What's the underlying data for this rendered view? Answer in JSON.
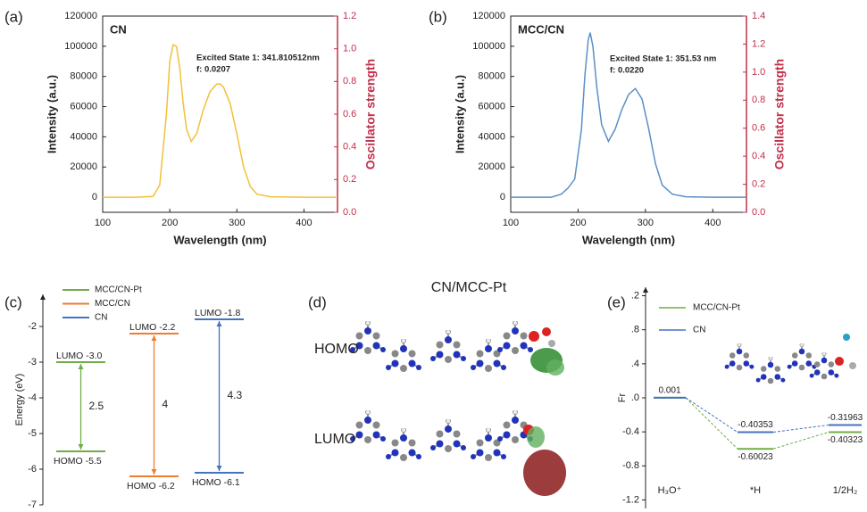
{
  "chart_data": [
    {
      "type": "spectrum",
      "panel_label": "(a)",
      "xlabel": "Wavelength (nm)",
      "ylabel": "Intensity (a.u.)",
      "y2label": "Oscillator strength",
      "annotations": [
        "Excited State 1: 341.810512nm",
        "f: 0.0207"
      ],
      "xlim": [
        100,
        450
      ],
      "xticks": [
        100,
        200,
        300,
        400
      ],
      "ylim": [
        -10000,
        120000
      ],
      "yticks": [
        0,
        20000,
        40000,
        60000,
        80000,
        100000,
        120000
      ],
      "y2lim": [
        0,
        1.2
      ],
      "y2ticks": [
        {
          "value": 0,
          "label": "0.0"
        },
        0.2,
        0.4,
        0.6,
        0.8,
        {
          "value": 1,
          "label": "1.0"
        },
        1.2
      ],
      "y2color": "#c0304a",
      "series": [
        {
          "name": "CN",
          "color": "#f2c038",
          "x": [
            100,
            150,
            175,
            185,
            195,
            200,
            205,
            210,
            215,
            220,
            225,
            232,
            240,
            250,
            260,
            270,
            275,
            280,
            290,
            300,
            310,
            320,
            330,
            350,
            400,
            450
          ],
          "values": [
            0,
            0,
            500,
            8000,
            55000,
            90000,
            101000,
            100000,
            85000,
            62000,
            45000,
            37000,
            42000,
            58000,
            70000,
            75000,
            75000,
            73000,
            62000,
            42000,
            20000,
            7000,
            2000,
            300,
            0,
            0
          ]
        }
      ]
    },
    {
      "type": "spectrum",
      "panel_label": "(b)",
      "xlabel": "Wavelength (nm)",
      "ylabel": "Intensity (a.u.)",
      "y2label": "Oscillator strength",
      "annotations": [
        "Excited State 1: 351.53 nm",
        "f: 0.0220"
      ],
      "xlim": [
        100,
        450
      ],
      "xticks": [
        100,
        200,
        300,
        400
      ],
      "ylim": [
        -10000,
        120000
      ],
      "yticks": [
        0,
        20000,
        40000,
        60000,
        80000,
        100000,
        120000
      ],
      "y2lim": [
        0,
        1.4
      ],
      "y2ticks": [
        {
          "value": 0,
          "label": "0.0"
        },
        0.2,
        0.4,
        0.6,
        0.8,
        {
          "value": 1,
          "label": "1.0"
        },
        1.2,
        1.4
      ],
      "y2color": "#c0304a",
      "series": [
        {
          "name": "MCC/CN",
          "color": "#5b8fc7",
          "x": [
            100,
            160,
            175,
            185,
            195,
            205,
            210,
            215,
            218,
            222,
            228,
            235,
            245,
            255,
            265,
            275,
            285,
            295,
            305,
            315,
            325,
            340,
            360,
            400,
            450
          ],
          "values": [
            0,
            0,
            2000,
            6000,
            12000,
            45000,
            80000,
            104000,
            109000,
            100000,
            72000,
            48000,
            37000,
            45000,
            58000,
            68000,
            72000,
            65000,
            45000,
            22000,
            8000,
            2000,
            300,
            0,
            0
          ]
        }
      ]
    },
    {
      "type": "energy",
      "panel_label": "(c)",
      "ylabel": "Energy (eV)",
      "ylim": [
        -7,
        -1.1
      ],
      "yticks": [
        -2,
        -3,
        -4,
        -5,
        -6,
        -7
      ],
      "series": [
        {
          "name": "MCC/CN-Pt",
          "color": "#70ad47",
          "values": [
            -3.0,
            -5.5
          ],
          "value_labels": [
            "LUMO -3.0",
            "HOMO -5.5"
          ],
          "gap": 2.5
        },
        {
          "name": "MCC/CN",
          "color": "#ed7d31",
          "values": [
            -2.2,
            -6.2
          ],
          "value_labels": [
            "LUMO -2.2",
            "HOMO -6.2"
          ],
          "gap": 4.0
        },
        {
          "name": "CN",
          "color": "#4472c4",
          "values": [
            -1.8,
            -6.1
          ],
          "value_labels": [
            "LUMO -1.8",
            "HOMO -6.1"
          ],
          "gap": 4.3
        }
      ]
    },
    {
      "type": "free_energy",
      "panel_label": "(e)",
      "ylabel": "Fr",
      "ylim": [
        -1.3,
        1.3
      ],
      "yticks": [
        {
          "value": 1.2,
          "label": ".2"
        },
        {
          "value": 0.8,
          "label": ".8"
        },
        {
          "value": 0.4,
          "label": ".4"
        },
        {
          "value": 0,
          "label": ".0"
        },
        -0.4,
        -0.8,
        -1.2
      ],
      "categories": [
        "H₃O⁺",
        "*H",
        "1/2H₂"
      ],
      "series": [
        {
          "name": "MCC/CN-Pt",
          "color": "#70ad47",
          "values": [
            0.001,
            -0.60023,
            -0.40323
          ],
          "value_labels": [
            "0.001",
            "-0.60023",
            "-0.40323"
          ]
        },
        {
          "name": "CN",
          "color": "#4472c4",
          "values": [
            0.001,
            -0.40353,
            -0.31963
          ],
          "value_labels": [
            null,
            "-0.40353",
            "-0.31963"
          ]
        }
      ]
    }
  ],
  "panel_d": {
    "label": "(d)",
    "title": "CN/MCC-Pt",
    "homo": "HOMO",
    "lumo": "LUMO"
  }
}
